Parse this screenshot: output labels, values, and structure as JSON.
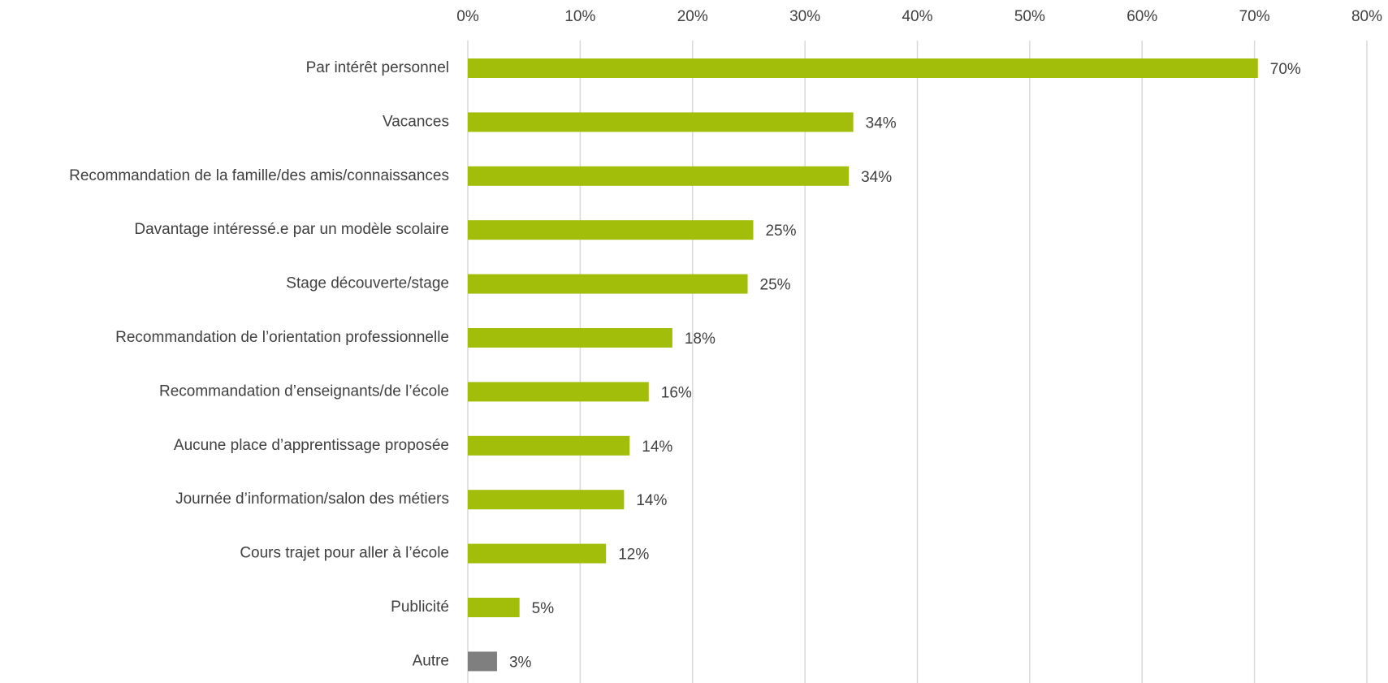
{
  "chart_data": {
    "type": "bar",
    "orientation": "horizontal",
    "categories": [
      "Par intérêt personnel",
      "Vacances",
      "Recommandation de la famille/des amis/connaissances",
      "Davantage intéressé.e par un modèle scolaire",
      "Stage découverte/stage",
      "Recommandation de l’orientation professionnelle",
      "Recommandation d’enseignants/de l’école",
      "Aucune place d’apprentissage proposée",
      "Journée d’information/salon des métiers",
      "Cours trajet pour aller à l’école",
      "Publicité",
      "Autre"
    ],
    "values": [
      70.3,
      34.3,
      33.9,
      25.4,
      24.9,
      18.2,
      16.1,
      14.4,
      13.9,
      12.3,
      4.6,
      2.6
    ],
    "value_labels": [
      "70%",
      "34%",
      "34%",
      "25%",
      "25%",
      "18%",
      "16%",
      "14%",
      "14%",
      "12%",
      "5%",
      "3%"
    ],
    "colors": [
      "#a2bd0a",
      "#a2bd0a",
      "#a2bd0a",
      "#a2bd0a",
      "#a2bd0a",
      "#a2bd0a",
      "#a2bd0a",
      "#a2bd0a",
      "#a2bd0a",
      "#a2bd0a",
      "#a2bd0a",
      "#7f7f7f"
    ],
    "xlim": [
      0,
      80
    ],
    "xticks": [
      {
        "value": 0,
        "label": "0%"
      },
      {
        "value": 10,
        "label": "10%"
      },
      {
        "value": 20,
        "label": "20%"
      },
      {
        "value": 30,
        "label": "30%"
      },
      {
        "value": 40,
        "label": "40%"
      },
      {
        "value": 50,
        "label": "50%"
      },
      {
        "value": 60,
        "label": "60%"
      },
      {
        "value": 70,
        "label": "70%"
      },
      {
        "value": 80,
        "label": "80%"
      }
    ],
    "grid": true
  }
}
